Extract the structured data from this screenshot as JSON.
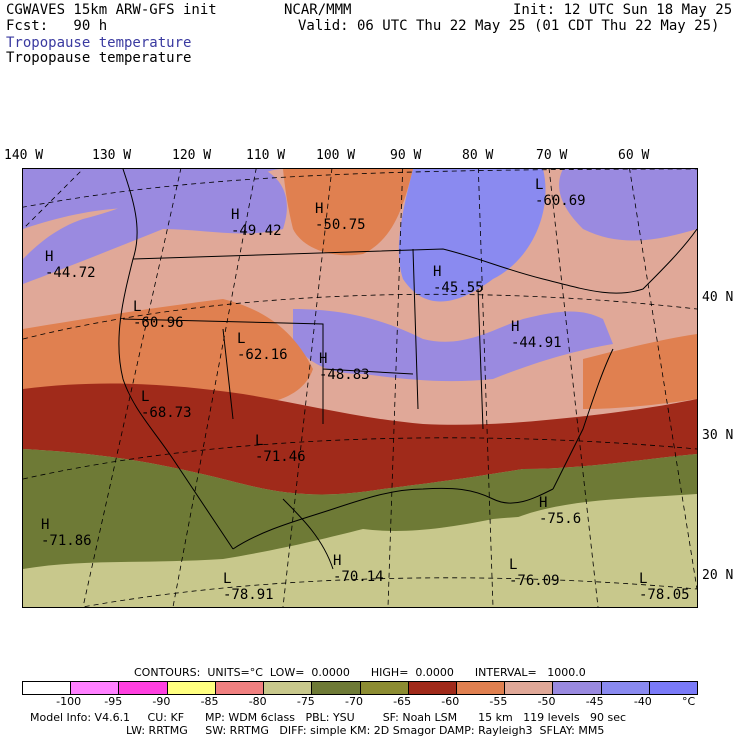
{
  "header": {
    "model": "CGWAVES 15km ARW-GFS init",
    "org": "NCAR/MMM",
    "init": "Init: 12 UTC Sun 18 May 25",
    "fcst": "Fcst:   90 h",
    "valid": "Valid: 06 UTC Thu 22 May 25 (01 CDT Thu 22 May 25)",
    "field_title": "Tropopause temperature",
    "field_subtitle": "Tropopause temperature"
  },
  "longitude_labels": [
    "140 W",
    "130 W",
    "120 W",
    "110 W",
    "100 W",
    "90 W",
    "80 W",
    "70 W",
    "60 W"
  ],
  "latitude_labels": [
    "40 N",
    "30 N",
    "20 N"
  ],
  "centers": [
    {
      "type": "H",
      "value": "-49.42"
    },
    {
      "type": "H",
      "value": "-50.75"
    },
    {
      "type": "L",
      "value": "-60.69"
    },
    {
      "type": "H",
      "value": "-44.72"
    },
    {
      "type": "L",
      "value": "-60.96"
    },
    {
      "type": "L",
      "value": "-62.16"
    },
    {
      "type": "H",
      "value": "-48.83"
    },
    {
      "type": "H",
      "value": "-45.55"
    },
    {
      "type": "H",
      "value": "-44.91"
    },
    {
      "type": "L",
      "value": "-68.73"
    },
    {
      "type": "L",
      "value": "-71.46"
    },
    {
      "type": "H",
      "value": "-71.86"
    },
    {
      "type": "H",
      "value": "-70.14"
    },
    {
      "type": "L",
      "value": "-78.91"
    },
    {
      "type": "H",
      "value": "-75.6"
    },
    {
      "type": "L",
      "value": "-76.09"
    },
    {
      "type": "L",
      "value": "-78.05"
    }
  ],
  "contours": {
    "label": "CONTOURS:  UNITS=°C  LOW=  0.0000      HIGH=  0.0000      INTERVAL=   1000.0"
  },
  "colorbar": {
    "colors": [
      "#ffffff",
      "#ff80ff",
      "#ff40e0",
      "#ffff80",
      "#f08080",
      "#c8c88c",
      "#6e7a36",
      "#8c8c32",
      "#a02a1a",
      "#e08050",
      "#e0a898",
      "#9a8ae0",
      "#8a8af0",
      "#7a7af8"
    ],
    "labels": [
      "-100",
      "-95",
      "-90",
      "-85",
      "-80",
      "-75",
      "-70",
      "-65",
      "-60",
      "-55",
      "-50",
      "-45",
      "-40",
      "°C"
    ]
  },
  "footer": {
    "line1": "Model Info: V4.6.1     CU: KF      MP: WDM 6class   PBL: YSU        SF: Noah LSM      15 km   119 levels   90 sec",
    "line2": "LW: RRTMG     SW: RRTMG   DIFF: simple KM: 2D Smagor DAMP: Rayleigh3  SFLAY: MM5"
  }
}
